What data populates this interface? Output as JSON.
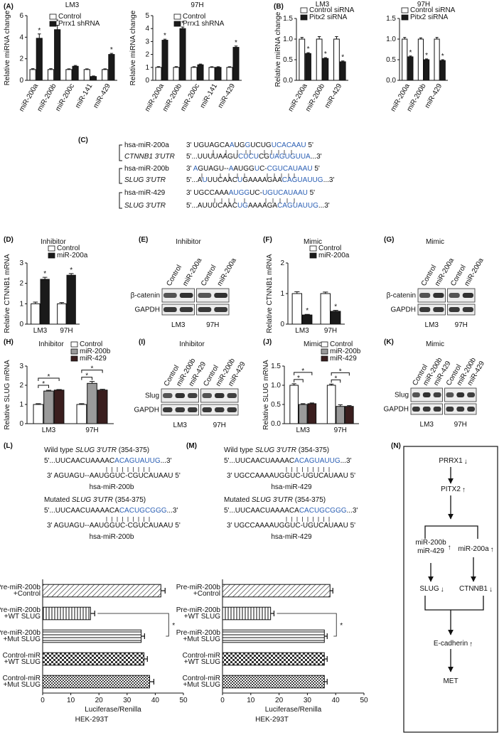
{
  "panel_labels": [
    "(A)",
    "(B)",
    "(C)",
    "(D)",
    "(E)",
    "(F)",
    "(G)",
    "(H)",
    "(I)",
    "(J)",
    "(K)",
    "(L)",
    "(M)",
    "(N)"
  ],
  "chart_data": [
    {
      "type": "bar",
      "title": "LM3",
      "ylabel": "Relative miRNA change",
      "categories": [
        "miR-200a",
        "miR-200b",
        "miR-200c",
        "miR-141",
        "miR-429"
      ],
      "series": [
        {
          "name": "Control",
          "color": "#ffffff",
          "values": [
            1,
            1,
            1,
            1,
            1
          ],
          "errors": [
            0.08,
            0.08,
            0.06,
            0.06,
            0.06
          ]
        },
        {
          "name": "Prrx1 shRNA",
          "color": "#1a1a1a",
          "values": [
            3.9,
            4.7,
            1.3,
            0.35,
            2.4
          ],
          "errors": [
            0.4,
            0.4,
            0.08,
            0.05,
            0.1
          ],
          "annotations": [
            "*",
            "*",
            null,
            null,
            "*"
          ]
        }
      ],
      "ylim": [
        0,
        6
      ],
      "yticks": [
        0,
        2,
        4,
        6
      ],
      "legend": "upper left",
      "annotation_style": "star"
    },
    {
      "type": "bar",
      "title": "97H",
      "ylabel": "Relative miRNA change",
      "categories": [
        "miR-200a",
        "miR-200b",
        "miR-200c",
        "miR-141",
        "miR-429"
      ],
      "series": [
        {
          "name": "Control",
          "color": "#ffffff",
          "values": [
            1,
            1,
            1,
            1,
            1
          ],
          "errors": [
            0.06,
            0.06,
            0.05,
            0.05,
            0.05
          ]
        },
        {
          "name": "Prrx1 shRNA",
          "color": "#1a1a1a",
          "values": [
            3.1,
            4.0,
            1.2,
            1.0,
            2.55
          ],
          "errors": [
            0.08,
            0.12,
            0.06,
            0.05,
            0.1
          ],
          "annotations": [
            "*",
            "*",
            null,
            null,
            "*"
          ]
        }
      ],
      "ylim": [
        0,
        5
      ],
      "yticks": [
        0,
        1,
        2,
        3,
        4,
        5
      ],
      "legend": "upper left",
      "annotation_style": "star"
    },
    {
      "type": "bar",
      "title": "LM3",
      "ylabel": "Relative miRNA change",
      "categories": [
        "miR-200a",
        "miR-200b",
        "miR-429"
      ],
      "series": [
        {
          "name": "Control siRNA",
          "color": "#ffffff",
          "values": [
            1,
            1,
            1
          ],
          "errors": [
            0.04,
            0.06,
            0.06
          ]
        },
        {
          "name": "Pitx2 siRNA",
          "color": "#1a1a1a",
          "values": [
            0.65,
            0.53,
            0.45
          ],
          "errors": [
            0.02,
            0.02,
            0.02
          ],
          "annotations": [
            "*",
            "*",
            "*"
          ]
        }
      ],
      "ylim": [
        0,
        1.5
      ],
      "yticks": [
        {
          "value": 0,
          "label": "0.0"
        },
        {
          "value": 0.5,
          "label": "0.5"
        },
        {
          "value": 1,
          "label": "1.0"
        },
        {
          "value": 1.5,
          "label": "1.5"
        }
      ],
      "legend": "upper left",
      "annotation_style": "star"
    },
    {
      "type": "bar",
      "title": "97H",
      "categories": [
        "miR-200a",
        "miR-200b",
        "miR-429"
      ],
      "series": [
        {
          "name": "Control siRNA",
          "color": "#ffffff",
          "values": [
            1,
            1,
            1
          ],
          "errors": [
            0.04,
            0.03,
            0.04
          ]
        },
        {
          "name": "Pitx2 siRNA",
          "color": "#1a1a1a",
          "values": [
            0.57,
            0.5,
            0.48
          ],
          "errors": [
            0.02,
            0.02,
            0.02
          ],
          "annotations": [
            "*",
            "*",
            "*"
          ]
        }
      ],
      "ylim": [
        0,
        1.5
      ],
      "yticks": [
        {
          "value": 0,
          "label": "0.0"
        },
        {
          "value": 0.5,
          "label": "0.5"
        },
        {
          "value": 1,
          "label": "1.0"
        },
        {
          "value": 1.5,
          "label": "1.5"
        }
      ],
      "legend": "upper left",
      "annotation_style": "star"
    },
    {
      "type": "bar",
      "title": "Inhibitor",
      "ylabel": "Relative CTNNB1 mRNA",
      "categories": [
        "LM3",
        "97H"
      ],
      "series": [
        {
          "name": "Control",
          "color": "#ffffff",
          "values": [
            1,
            1
          ],
          "errors": [
            0.08,
            0.06
          ]
        },
        {
          "name": "miR-200a",
          "color": "#1a1a1a",
          "values": [
            2.2,
            2.4
          ],
          "errors": [
            0.1,
            0.08
          ],
          "annotations": [
            "*",
            "*"
          ]
        }
      ],
      "ylim": [
        0,
        3
      ],
      "yticks": [
        0,
        1,
        2,
        3
      ],
      "legend": "upper left",
      "annotation_style": "star"
    },
    {
      "type": "bar",
      "title": "Mimic",
      "ylabel": "Relative CTNNB1 mRNA",
      "categories": [
        "LM3",
        "97H"
      ],
      "series": [
        {
          "name": "Control",
          "color": "#ffffff",
          "values": [
            1,
            1
          ],
          "errors": [
            0.06,
            0.05
          ]
        },
        {
          "name": "miR-200a",
          "color": "#1a1a1a",
          "values": [
            0.3,
            0.42
          ],
          "errors": [
            0.02,
            0.03
          ],
          "annotations": [
            "*",
            "*"
          ]
        }
      ],
      "ylim": [
        0,
        2
      ],
      "yticks": [
        0,
        1,
        2
      ],
      "legend": "upper left",
      "annotation_style": "star"
    },
    {
      "type": "bar",
      "title": "Inhibitor",
      "ylabel": "Relative SLUG mRNA",
      "categories": [
        "LM3",
        "97H"
      ],
      "series": [
        {
          "name": "Control",
          "color": "#ffffff",
          "values": [
            1,
            1
          ],
          "errors": [
            0.04,
            0.04
          ]
        },
        {
          "name": "miR-200b",
          "color": "#9a9a9a",
          "values": [
            1.7,
            2.1
          ],
          "errors": [
            0.04,
            0.1
          ],
          "annotations": [
            "*",
            "*"
          ]
        },
        {
          "name": "miR-429",
          "color": "#3a1e1e",
          "values": [
            1.75,
            1.75
          ],
          "errors": [
            0.03,
            0.04
          ],
          "annotations": [
            "*",
            "*"
          ]
        }
      ],
      "ylim": [
        0,
        3
      ],
      "yticks": [
        0,
        1,
        2,
        3
      ],
      "legend": "upper left",
      "annotation_style": "bracket"
    },
    {
      "type": "bar",
      "title": "Mimic",
      "ylabel": "Relative SLUG mRNA",
      "categories": [
        "LM3",
        "97H"
      ],
      "series": [
        {
          "name": "Control",
          "color": "#ffffff",
          "values": [
            1,
            1
          ],
          "errors": [
            0.04,
            0.03
          ]
        },
        {
          "name": "miR-200b",
          "color": "#9a9a9a",
          "values": [
            0.5,
            0.45
          ],
          "errors": [
            0.02,
            0.04
          ],
          "annotations": [
            "*",
            "*"
          ]
        },
        {
          "name": "miR-429",
          "color": "#3a1e1e",
          "values": [
            0.52,
            0.45
          ],
          "errors": [
            0.02,
            0.02
          ],
          "annotations": [
            "*",
            "*"
          ]
        }
      ],
      "ylim": [
        0,
        1.5
      ],
      "yticks": [
        {
          "value": 0,
          "label": "0.0"
        },
        {
          "value": 0.5,
          "label": "0.5"
        },
        {
          "value": 1,
          "label": "1.0"
        },
        {
          "value": 1.5,
          "label": "1.5"
        }
      ],
      "legend": "upper left",
      "annotation_style": "bracket"
    },
    {
      "type": "hbar",
      "xlabel": "Luciferase/Renilla",
      "subtitle": "HEK-293T",
      "categories": [
        [
          "Pre-miR-200b",
          "+Control"
        ],
        [
          "Pre-miR-200b",
          "+WT SLUG"
        ],
        [
          "Pre-miR-200b",
          "+Mut SLUG"
        ],
        [
          "Control-miR",
          "+WT SLUG"
        ],
        [
          "Control-miR",
          "+Mut SLUG"
        ]
      ],
      "values": [
        42,
        17,
        35,
        36,
        38
      ],
      "errors": [
        1.5,
        1.5,
        1.2,
        1.2,
        1.5
      ],
      "annotations": [
        null,
        "*",
        null,
        null,
        null
      ],
      "patterns": [
        "diagonal",
        "vertical",
        "horizontal",
        "checker",
        "fine-checker"
      ],
      "xlim": [
        0,
        50
      ],
      "xticks": [
        0,
        10,
        20,
        30,
        40,
        50
      ]
    },
    {
      "type": "hbar",
      "xlabel": "Luciferase/Renilla",
      "subtitle": "HEK-293T",
      "categories": [
        [
          "Pre-miR-200b",
          "+Control"
        ],
        [
          "Pre-miR-200b",
          "+WT SLUG"
        ],
        [
          "Pre-miR-200b",
          "+Mut SLUG"
        ],
        [
          "Control-miR",
          "+WT SLUG"
        ],
        [
          "Control-miR",
          "+Mut SLUG"
        ]
      ],
      "values": [
        38,
        17,
        36,
        36,
        36
      ],
      "errors": [
        1,
        1.2,
        1,
        1,
        1
      ],
      "annotations": [
        null,
        "*",
        null,
        null,
        null
      ],
      "patterns": [
        "diagonal",
        "vertical",
        "horizontal",
        "checker",
        "fine-checker"
      ],
      "xlim": [
        0,
        50
      ],
      "xticks": [
        0,
        10,
        20,
        30,
        40,
        50
      ]
    }
  ],
  "alignment": {
    "rows": [
      {
        "label": [
          {
            "text": "hsa-miR-200a"
          }
        ],
        "sequence": [
          {
            "text": "3' UGUAGCA"
          },
          {
            "text": "A",
            "color": "#2b5fb4"
          },
          {
            "text": "UG"
          },
          {
            "text": "G",
            "color": "#2b5fb4"
          },
          {
            "text": "UCUG"
          },
          {
            "text": "UCACAAU",
            "color": "#2b5fb4"
          },
          {
            "text": " 5'"
          }
        ]
      },
      {
        "label": [
          {
            "text": "CTNNB1 3'UTR",
            "italic": true
          }
        ],
        "sequence": [
          {
            "text": "5'...UUUUAAGU"
          },
          {
            "text": "CUCU",
            "color": "#2b5fb4"
          },
          {
            "text": "CG"
          },
          {
            "text": "UAGUGUUA",
            "color": "#2b5fb4"
          },
          {
            "text": "...3'"
          }
        ]
      },
      {
        "label": [
          {
            "text": "hsa-miR-200b"
          }
        ],
        "sequence": [
          {
            "text": "3' "
          },
          {
            "text": "A",
            "color": "#2b5fb4"
          },
          {
            "text": "GUAGU--"
          },
          {
            "text": "A",
            "color": "#2b5fb4"
          },
          {
            "text": "AUGG"
          },
          {
            "text": "U",
            "color": "#2b5fb4"
          },
          {
            "text": "C-"
          },
          {
            "text": "CGUCAUAAU",
            "color": "#2b5fb4"
          },
          {
            "text": " 5'"
          }
        ]
      },
      {
        "label": [
          {
            "text": "SLUG 3'UTR",
            "italic": true
          }
        ],
        "sequence": [
          {
            "text": "5'...A"
          },
          {
            "text": "U",
            "color": "#2b5fb4"
          },
          {
            "text": "UUCAAC"
          },
          {
            "text": "U",
            "color": "#2b5fb4"
          },
          {
            "text": "GAAAAGAA"
          },
          {
            "text": "CAGUAUUG",
            "color": "#2b5fb4"
          },
          {
            "text": "...3'"
          }
        ]
      },
      {
        "label": [
          {
            "text": "hsa-miR-429"
          }
        ],
        "sequence": [
          {
            "text": "3' UGCCAAA"
          },
          {
            "text": "AUGG",
            "color": "#2b5fb4"
          },
          {
            "text": "UC-"
          },
          {
            "text": "UGUCAUAAU",
            "color": "#2b5fb4"
          },
          {
            "text": " 5'"
          }
        ]
      },
      {
        "label": [
          {
            "text": "SLUG 3'UTR",
            "italic": true
          }
        ],
        "sequence": [
          {
            "text": "5'...AUUUCAAC"
          },
          {
            "text": "UG",
            "color": "#2b5fb4"
          },
          {
            "text": "AAAAGA"
          },
          {
            "text": "CAGUAUUG",
            "color": "#2b5fb4"
          },
          {
            "text": "...3'"
          }
        ]
      }
    ]
  },
  "blots": [
    {
      "title": "Inhibitor",
      "lanes": [
        "Control",
        "miR-200a",
        "Control",
        "miR-200a"
      ],
      "rows": [
        "β-catenin",
        "GAPDH"
      ],
      "groups": [
        "LM3",
        "97H"
      ]
    },
    {
      "title": "Mimic",
      "lanes": [
        "Control",
        "miR-200a",
        "Control",
        "miR-200a"
      ],
      "rows": [
        "β-catenin",
        "GAPDH"
      ],
      "groups": [
        "LM3",
        "97H"
      ]
    },
    {
      "title": "Inhibitor",
      "lanes": [
        "Control",
        "miR-200b",
        "miR-429",
        "Control",
        "miR-200b",
        "miR-429"
      ],
      "rows": [
        "Slug",
        "GAPDH"
      ],
      "groups": [
        "LM3",
        "97H"
      ]
    },
    {
      "title": "Mimic",
      "lanes": [
        "Control",
        "miR-200b",
        "miR-429",
        "Control",
        "miR-200b",
        "miR-429"
      ],
      "rows": [
        "Slug",
        "GAPDH"
      ],
      "groups": [
        "LM3",
        "97H"
      ]
    }
  ],
  "constructs": [
    {
      "lines": [
        [
          {
            "text": "Wild type "
          },
          {
            "text": "SLUG 3'UTR",
            "italic": true
          },
          {
            "text": " (354-375)"
          }
        ],
        [
          {
            "text": "5'...UUCAACUAAAAC"
          },
          {
            "text": "ACAGUAUUG",
            "color": "#2b5fb4"
          },
          {
            "text": "...3'"
          }
        ],
        [
          {
            "text": "3' AGUAGU--AAUGGUC-CGUCAUAAU 5'"
          }
        ],
        [
          {
            "text": "hsa-miR-200b"
          }
        ],
        [
          {
            "text": "Mutated "
          },
          {
            "text": "SLUG 3'UTR",
            "italic": true
          },
          {
            "text": " (354-375)"
          }
        ],
        [
          {
            "text": "5'...UUCAACUAAAACA"
          },
          {
            "text": "CACUGCGGG",
            "color": "#2b5fb4"
          },
          {
            "text": "...3'"
          }
        ],
        [
          {
            "text": "3' AGUAGU--AAUGGUC-CGUCAUAAU 5'"
          }
        ],
        [
          {
            "text": "hsa-miR-200b"
          }
        ]
      ]
    },
    {
      "lines": [
        [
          {
            "text": "Wild type "
          },
          {
            "text": "SLUG 3'UTR",
            "italic": true
          },
          {
            "text": " (354-375)"
          }
        ],
        [
          {
            "text": "5'...UUCAACUAAAAC"
          },
          {
            "text": "ACAGUAUUG",
            "color": "#2b5fb4"
          },
          {
            "text": "...3'"
          }
        ],
        [
          {
            "text": "3' UGCCAAAAUGGUC-UGUCAUAAU 5'"
          }
        ],
        [
          {
            "text": "hsa-miR-429"
          }
        ],
        [
          {
            "text": "Mutated "
          },
          {
            "text": "SLUG 3'UTR",
            "italic": true
          },
          {
            "text": " (354-375)"
          }
        ],
        [
          {
            "text": "5'...UUCAACUAAAACA"
          },
          {
            "text": "CACUGCGGG",
            "color": "#2b5fb4"
          },
          {
            "text": "...3'"
          }
        ],
        [
          {
            "text": "3' UGCCAAAAUGGUC-UGUCAUAAU 5'"
          }
        ],
        [
          {
            "text": "hsa-miR-429"
          }
        ]
      ]
    }
  ],
  "diagram": {
    "nodes": [
      {
        "lines": [
          "PRRX1"
        ],
        "arrow": "↓",
        "arrow_color": "#2a62c9"
      },
      {
        "lines": [
          "PITX2"
        ],
        "arrow": "↑",
        "arrow_color": "#e8632c"
      },
      {
        "lines": [
          "miR-200b",
          "miR-429"
        ],
        "arrow": "↑",
        "arrow_color": "#e8632c"
      },
      {
        "lines": [
          "miR-200a"
        ],
        "arrow": "↑",
        "arrow_color": "#e8632c"
      },
      {
        "lines": [
          "SLUG"
        ],
        "arrow": "↓",
        "arrow_color": "#2a62c9"
      },
      {
        "lines": [
          "CTNNB1"
        ],
        "arrow": "↓",
        "arrow_color": "#2a62c9"
      },
      {
        "lines": [
          "E-cadherin"
        ],
        "arrow": "↑",
        "arrow_color": "#e8632c"
      },
      {
        "lines": [
          "MET"
        ]
      }
    ]
  }
}
